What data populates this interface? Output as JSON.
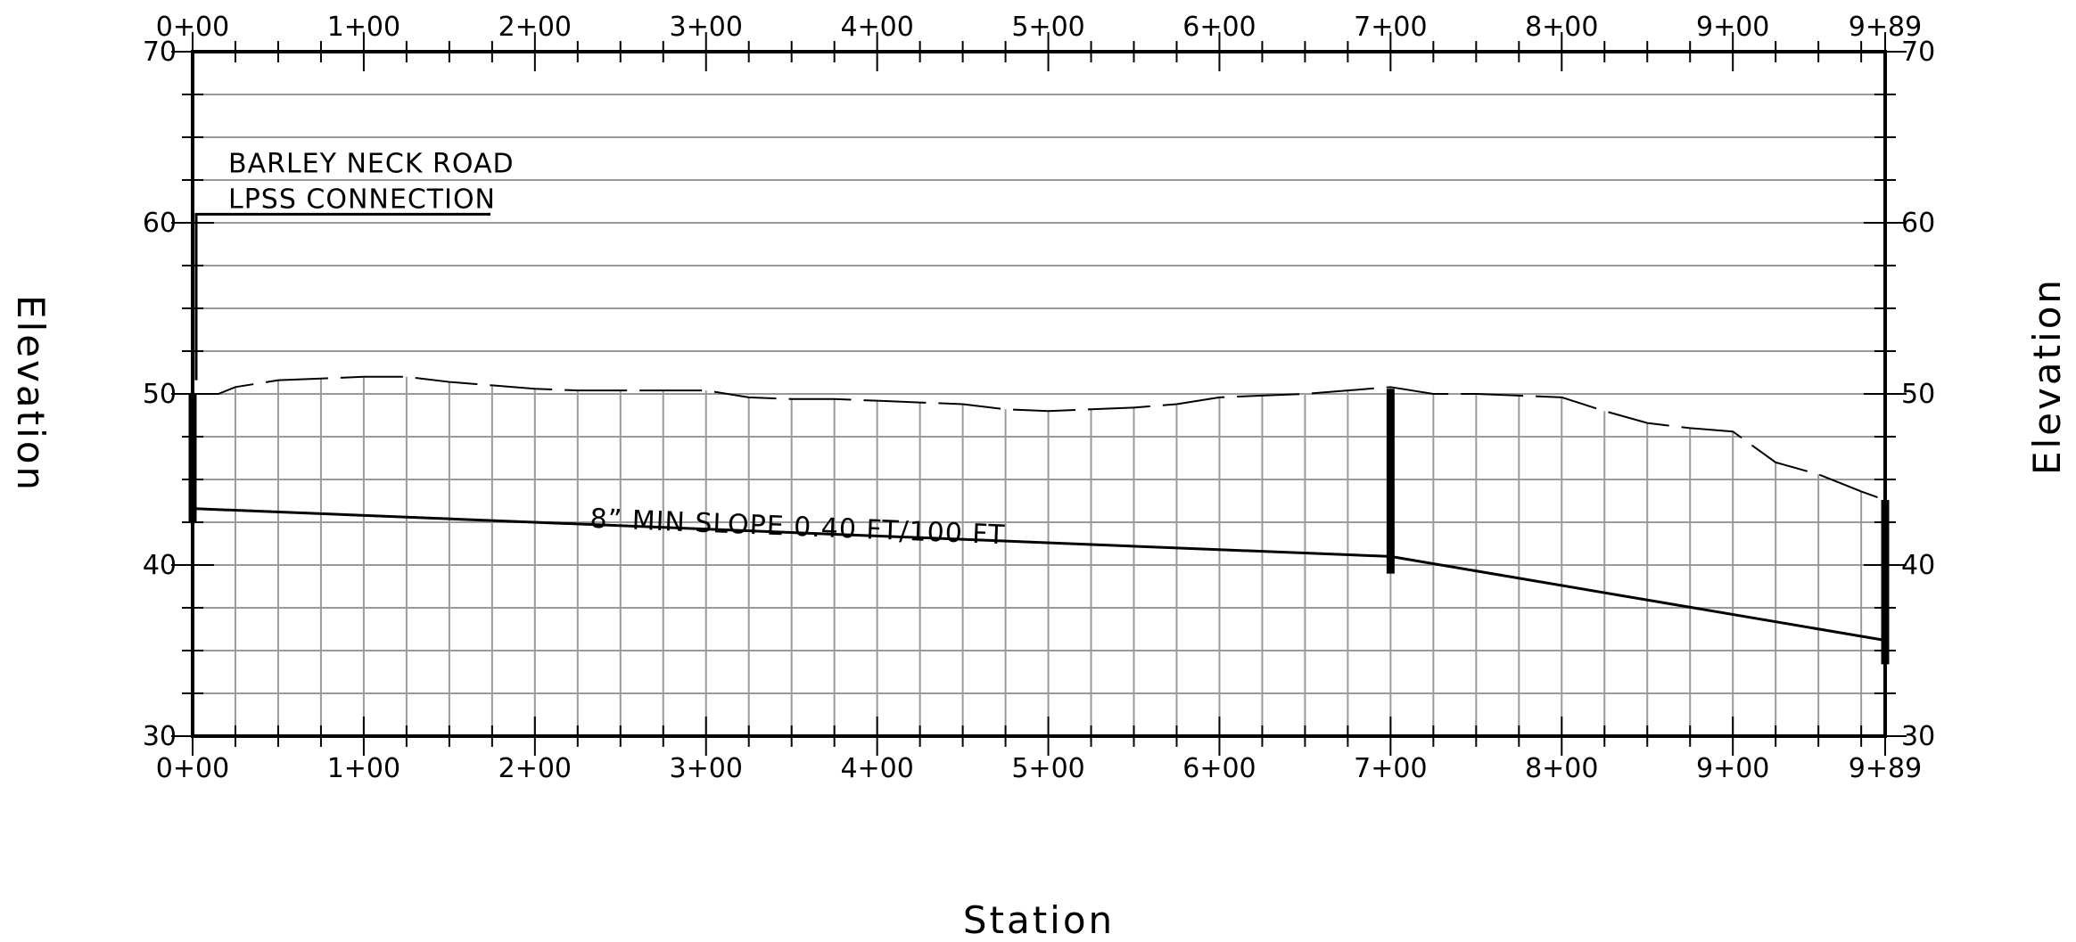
{
  "chart_data": {
    "type": "line",
    "title": "",
    "xlabel": "Station",
    "ylabel_left": "Elevation",
    "ylabel_right": "Elevation",
    "xlim": [
      0,
      989
    ],
    "ylim": [
      30,
      70
    ],
    "x_ticks": [
      {
        "x": 0,
        "label": "0+00"
      },
      {
        "x": 100,
        "label": "1+00"
      },
      {
        "x": 200,
        "label": "2+00"
      },
      {
        "x": 300,
        "label": "3+00"
      },
      {
        "x": 400,
        "label": "4+00"
      },
      {
        "x": 500,
        "label": "5+00"
      },
      {
        "x": 600,
        "label": "6+00"
      },
      {
        "x": 700,
        "label": "7+00"
      },
      {
        "x": 800,
        "label": "8+00"
      },
      {
        "x": 900,
        "label": "9+00"
      },
      {
        "x": 989,
        "label": "9+89"
      }
    ],
    "y_ticks": [
      {
        "y": 30,
        "label": "30"
      },
      {
        "y": 40,
        "label": "40"
      },
      {
        "y": 50,
        "label": "50"
      },
      {
        "y": 60,
        "label": "60"
      },
      {
        "y": 70,
        "label": "70"
      }
    ],
    "grid": true,
    "series": [
      {
        "style": "dashed",
        "x": [
          0,
          15,
          25,
          50,
          75,
          100,
          125,
          150,
          175,
          200,
          225,
          250,
          300,
          325,
          350,
          375,
          400,
          425,
          450,
          475,
          500,
          525,
          550,
          575,
          600,
          625,
          650,
          675,
          700,
          725,
          750,
          775,
          800,
          825,
          850,
          875,
          900,
          925,
          950,
          975,
          989
        ],
        "y": [
          50,
          50.0,
          50.4,
          50.8,
          50.9,
          51.0,
          51.0,
          50.7,
          50.5,
          50.3,
          50.2,
          50.2,
          50.2,
          49.8,
          49.7,
          49.7,
          49.6,
          49.5,
          49.4,
          49.1,
          49.0,
          49.1,
          49.2,
          49.4,
          49.8,
          49.9,
          50.0,
          50.2,
          50.4,
          50.0,
          50.0,
          49.9,
          49.8,
          49.0,
          48.3,
          48.0,
          47.8,
          46.0,
          45.3,
          44.3,
          43.8
        ]
      },
      {
        "style": "solid",
        "x": [
          0,
          700,
          989
        ],
        "y": [
          43.3,
          40.5,
          35.6
        ]
      }
    ],
    "structures": [
      {
        "x": 0,
        "y_bottom": 42.5,
        "y_top": 50.0
      },
      {
        "x": 700,
        "y_bottom": 39.5,
        "y_top": 50.3
      },
      {
        "x": 989,
        "y_bottom": 34.2,
        "y_top": 43.8
      }
    ],
    "annotations": {
      "location_line1": "BARLEY NECK ROAD",
      "location_line2": "LPSS CONNECTION",
      "pipe_label": "8” MIN SLOPE 0.40 FT/100 FT"
    },
    "pipe_label_anchor": {
      "x": 232,
      "y": 42.2
    },
    "leader_anchor": {
      "x": 0,
      "y": 60.5
    }
  }
}
